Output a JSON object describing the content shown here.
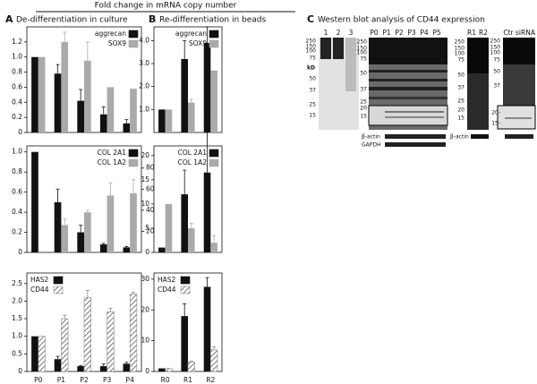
{
  "header": {
    "title": "Fold change in mRNA copy number",
    "panels": [
      {
        "letter": "A",
        "title": "De-differentiation in culture"
      },
      {
        "letter": "B",
        "title": "Re-differentiation in beads"
      },
      {
        "letter": "C",
        "title": "Western blot analysis of CD44 expression"
      }
    ]
  },
  "chart_data": [
    {
      "type": "bar",
      "categories": [
        null,
        null,
        null,
        null,
        null
      ],
      "legend": "upper right",
      "ylim": [
        0,
        1.4
      ],
      "yticks": [
        0,
        0.2,
        0.4,
        0.6,
        0.8,
        {
          "value": 1,
          "label": "1.0"
        },
        1.2
      ],
      "series": [
        {
          "name": "aggrecan",
          "color": "#111111",
          "values": [
            1.0,
            0.78,
            0.42,
            0.24,
            0.12
          ],
          "errors": [
            0,
            0.12,
            0.15,
            0.1,
            0.05
          ]
        },
        {
          "name": "SOX9",
          "color": "#aaaaaa",
          "values": [
            1.0,
            1.2,
            0.95,
            0.6,
            0.58
          ],
          "errors": [
            0,
            0.13,
            0.25,
            0,
            0
          ]
        }
      ]
    },
    {
      "type": "bar",
      "categories": [
        null,
        null,
        null,
        null,
        null
      ],
      "legend": "upper right",
      "ylim": [
        0,
        1.06
      ],
      "yticks": [
        0,
        0.2,
        0.4,
        0.6,
        0.8,
        {
          "value": 1,
          "label": "1.0"
        }
      ],
      "y2lim": [
        0,
        101
      ],
      "y2ticks": [
        20,
        40,
        60,
        80
      ],
      "series": [
        {
          "name": "COL 2A1",
          "color": "#111111",
          "values": [
            1.0,
            0.5,
            0.2,
            0.08,
            0.05
          ],
          "errors": [
            0,
            0.13,
            0.07,
            0.01,
            0.01
          ]
        },
        {
          "name": "COL 1A2",
          "color": "#aaaaaa",
          "axis": "y2",
          "values": [
            1,
            26,
            38,
            54,
            56
          ],
          "errors": [
            0,
            6,
            2,
            12,
            13
          ]
        }
      ]
    },
    {
      "type": "bar",
      "categories": [
        "P0",
        "P1",
        "P2",
        "P3",
        "P4"
      ],
      "legend": "upper left",
      "ylim": [
        0,
        2.8
      ],
      "yticks": [
        0,
        0.5,
        {
          "value": 1,
          "label": "1.0"
        },
        1.5,
        {
          "value": 2,
          "label": "2.0"
        },
        2.5
      ],
      "series": [
        {
          "name": "HAS2",
          "color": "#111111",
          "values": [
            1.0,
            0.35,
            0.15,
            0.15,
            0.22
          ],
          "errors": [
            0,
            0.08,
            0.02,
            0.06,
            0.04
          ]
        },
        {
          "name": "CD44",
          "color": "#888888",
          "pattern": "hatch",
          "values": [
            1.0,
            1.5,
            2.1,
            1.7,
            2.2
          ],
          "errors": [
            0,
            0.1,
            0.2,
            0.1,
            0.05
          ]
        }
      ]
    },
    {
      "type": "bar",
      "categories": [
        null,
        null,
        null
      ],
      "legend": "upper right",
      "ylim": [
        0,
        4.6
      ],
      "yticks": [
        {
          "value": 1,
          "label": "1.0"
        },
        {
          "value": 2,
          "label": "2.0"
        },
        {
          "value": 3,
          "label": "3.0"
        },
        {
          "value": 4,
          "label": "4.0"
        }
      ],
      "series": [
        {
          "name": "aggrecan",
          "color": "#111111",
          "values": [
            1.0,
            3.2,
            3.9
          ],
          "errors": [
            0,
            0.8,
            0.7
          ]
        },
        {
          "name": "SOX9",
          "color": "#aaaaaa",
          "values": [
            1.0,
            1.3,
            2.7
          ],
          "errors": [
            0,
            0.15,
            0
          ]
        }
      ]
    },
    {
      "type": "bar",
      "categories": [
        null,
        null,
        null
      ],
      "legend": "upper right",
      "ylim": [
        0,
        22
      ],
      "yticks": [
        0,
        5,
        10,
        15,
        20
      ],
      "series": [
        {
          "name": "COL 2A1",
          "color": "#111111",
          "values": [
            1,
            12,
            16.5
          ],
          "errors": [
            0,
            5,
            11
          ]
        },
        {
          "name": "COL 1A2",
          "color": "#aaaaaa",
          "values": [
            10,
            5,
            2
          ],
          "errors": [
            0,
            1,
            1.5
          ]
        }
      ]
    },
    {
      "type": "bar",
      "categories": [
        "R0",
        "R1",
        "R2"
      ],
      "legend": "upper left",
      "ylim": [
        0,
        32
      ],
      "yticks": [
        0,
        10,
        20,
        30
      ],
      "series": [
        {
          "name": "HAS2",
          "color": "#111111",
          "values": [
            1,
            18,
            27.5
          ],
          "errors": [
            0,
            4,
            3
          ]
        },
        {
          "name": "CD44",
          "color": "#888888",
          "pattern": "hatch",
          "values": [
            1,
            3,
            7
          ],
          "errors": [
            0,
            0.3,
            1
          ]
        }
      ]
    }
  ],
  "blot": {
    "unit": "kD",
    "panels": [
      {
        "lanes": [
          "1",
          "2",
          "3"
        ],
        "markers": [
          "250",
          "150",
          "100",
          "75",
          "50",
          "37",
          "25",
          "15"
        ],
        "controls": []
      },
      {
        "lanes": [
          "P0",
          "P1",
          "P2",
          "P3",
          "P4",
          "P5"
        ],
        "markers": [
          "250",
          "150",
          "100",
          "75",
          "50",
          "37",
          "25",
          "20",
          "15"
        ],
        "controls": [
          "β-actin",
          "GAPDH"
        ]
      },
      {
        "lanes": [
          "R1",
          "R2"
        ],
        "markers": [
          "250",
          "150",
          "100",
          "75",
          "50",
          "37",
          "25",
          "20",
          "15"
        ],
        "controls": [
          "β-actin"
        ]
      },
      {
        "lanes": [
          "Ctr",
          "siRNA"
        ],
        "markers": [
          "250",
          "150",
          "100",
          "75",
          "50",
          "37",
          "20-",
          "15-"
        ],
        "controls": []
      }
    ]
  }
}
